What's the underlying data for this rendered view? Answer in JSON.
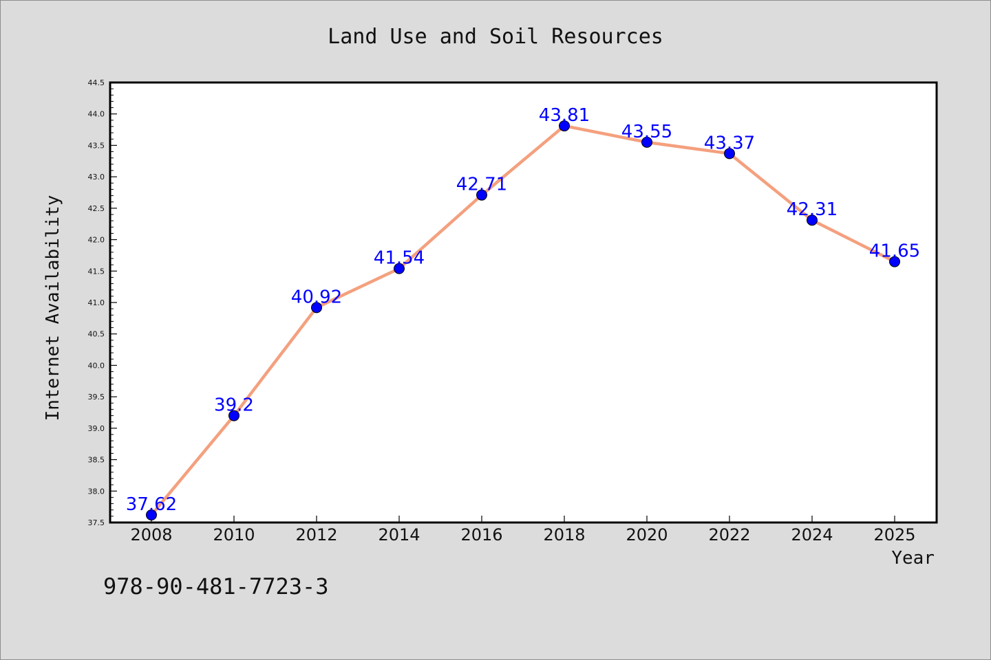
{
  "chart_data": {
    "type": "line",
    "title": "Land Use and Soil Resources",
    "xlabel": "Year",
    "ylabel": "Internet Availability",
    "x": [
      "2008",
      "2010",
      "2012",
      "2014",
      "2016",
      "2018",
      "2020",
      "2022",
      "2024",
      "2025"
    ],
    "series": [
      {
        "values": [
          37.62,
          39.2,
          40.92,
          41.54,
          42.71,
          43.81,
          43.55,
          43.37,
          42.31,
          41.65
        ]
      }
    ],
    "data_labels": [
      "37.62",
      "39.2",
      "40.92",
      "41.54",
      "42.71",
      "43.81",
      "43.55",
      "43.37",
      "42.31",
      "41.65"
    ],
    "ylim": [
      37.5,
      44.5
    ],
    "y_ticks": [
      "37.5",
      "38.0",
      "38.5",
      "39.0",
      "39.5",
      "40.0",
      "40.5",
      "41.0",
      "41.5",
      "42.0",
      "42.5",
      "43.0",
      "43.5",
      "44.0",
      "44.5"
    ],
    "grid": false,
    "legend": "none",
    "colors": {
      "line": "#f4a07e",
      "marker": "#0000ff",
      "label": "#0000ff",
      "background": "#dcdcdc",
      "plot_background": "#ffffff"
    }
  },
  "footer_text": "978-90-481-7723-3"
}
